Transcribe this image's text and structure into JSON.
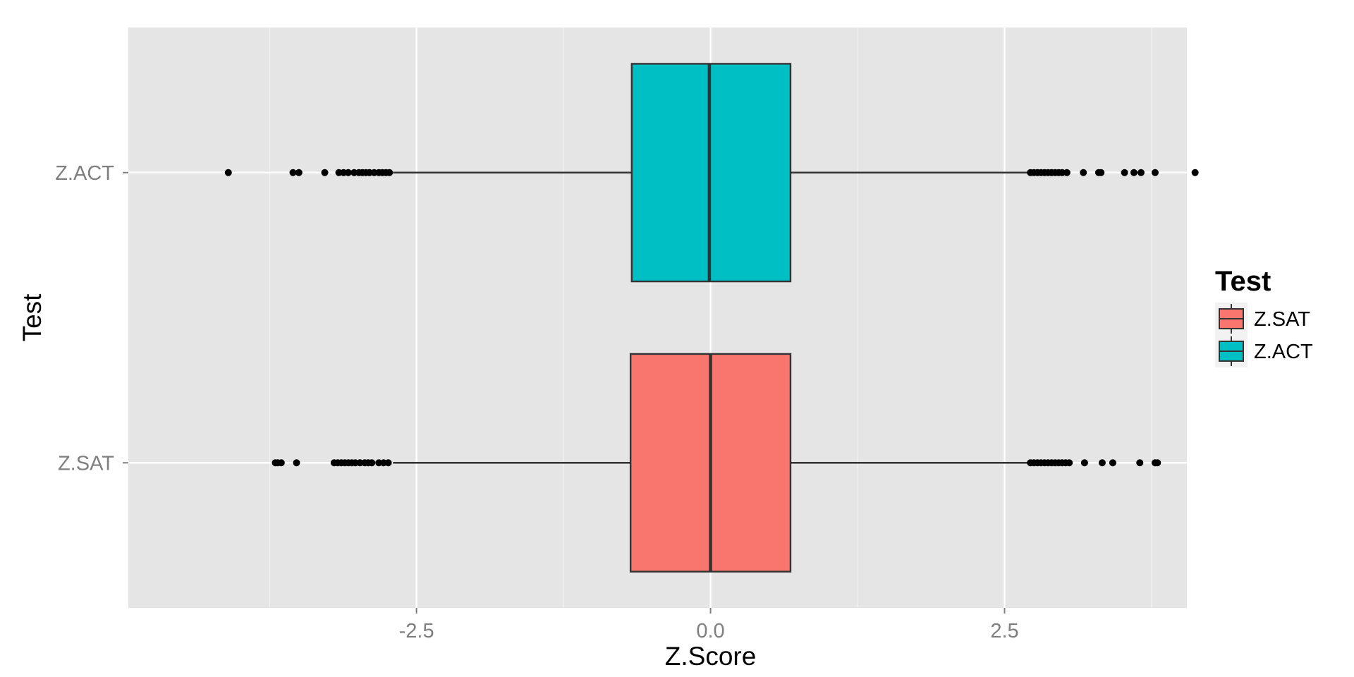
{
  "chart_data": {
    "type": "boxplot",
    "orientation": "horizontal",
    "title": "",
    "xlabel": "Z.Score",
    "ylabel": "Test",
    "xlim": [
      -4.95,
      4.05
    ],
    "x_ticks": [
      -2.5,
      0.0,
      2.5
    ],
    "x_tick_labels": [
      "-2.5",
      "0.0",
      "2.5"
    ],
    "categories": [
      "Z.SAT",
      "Z.ACT"
    ],
    "grid": true,
    "background": "#e5e5e5",
    "legend": {
      "title": "Test",
      "position": "right",
      "entries": [
        "Z.SAT",
        "Z.ACT"
      ]
    },
    "series": [
      {
        "name": "Z.SAT",
        "color": "#f8766d",
        "q1": -0.68,
        "median": 0.0,
        "q3": 0.68,
        "whisker_low": -2.7,
        "whisker_high": 2.7,
        "outliers": [
          -3.7,
          -3.68,
          -3.65,
          -3.52,
          -3.2,
          -3.17,
          -3.14,
          -3.11,
          -3.08,
          -3.05,
          -3.02,
          -2.98,
          -2.94,
          -2.91,
          -2.88,
          -2.82,
          -2.78,
          -2.74,
          2.72,
          2.75,
          2.78,
          2.81,
          2.84,
          2.87,
          2.9,
          2.93,
          2.96,
          2.99,
          3.02,
          3.05,
          3.18,
          3.33,
          3.42,
          3.65,
          3.78,
          3.8
        ]
      },
      {
        "name": "Z.ACT",
        "color": "#00bfc4",
        "q1": -0.67,
        "median": -0.01,
        "q3": 0.68,
        "whisker_low": -2.7,
        "whisker_high": 2.7,
        "outliers": [
          -4.1,
          -3.55,
          -3.5,
          -3.28,
          -3.16,
          -3.12,
          -3.08,
          -3.03,
          -2.99,
          -2.96,
          -2.93,
          -2.9,
          -2.86,
          -2.82,
          -2.79,
          -2.76,
          -2.73,
          2.72,
          2.75,
          2.78,
          2.81,
          2.84,
          2.87,
          2.9,
          2.93,
          2.96,
          2.99,
          3.03,
          3.17,
          3.3,
          3.32,
          3.52,
          3.6,
          3.66,
          3.78,
          4.12
        ]
      }
    ]
  }
}
